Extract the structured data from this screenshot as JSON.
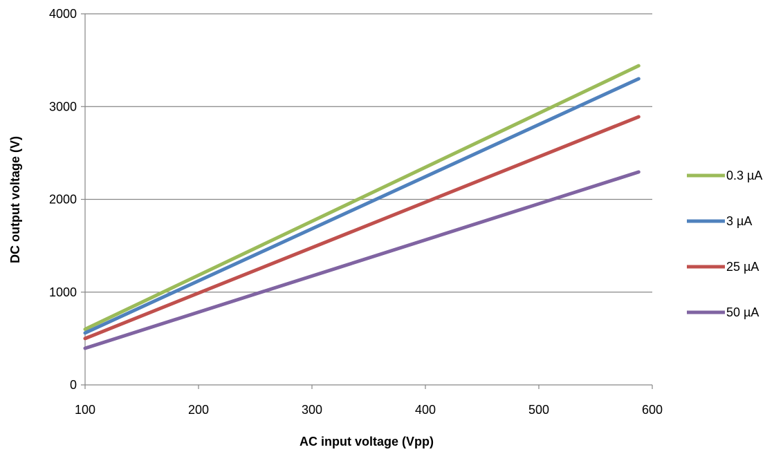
{
  "chart_data": {
    "type": "line",
    "title": "",
    "xlabel": "AC input voltage  (Vpp)",
    "ylabel": "DC output voltage (V)",
    "xlim": [
      100,
      600
    ],
    "ylim": [
      0,
      4000
    ],
    "xticks": [
      100,
      200,
      300,
      400,
      500,
      600
    ],
    "yticks": [
      0,
      1000,
      2000,
      3000,
      4000
    ],
    "grid": "horizontal",
    "legend_position": "right",
    "series": [
      {
        "name": "0.3 µA",
        "color": "#9BBB59",
        "x": [
          100,
          588
        ],
        "y": [
          600,
          3440
        ]
      },
      {
        "name": "3 µA",
        "color": "#4F81BD",
        "x": [
          100,
          588
        ],
        "y": [
          560,
          3300
        ]
      },
      {
        "name": "25 µA",
        "color": "#C0504D",
        "x": [
          100,
          588
        ],
        "y": [
          500,
          2890
        ]
      },
      {
        "name": "50 µA",
        "color": "#8064A2",
        "x": [
          100,
          588
        ],
        "y": [
          395,
          2295
        ]
      }
    ]
  }
}
